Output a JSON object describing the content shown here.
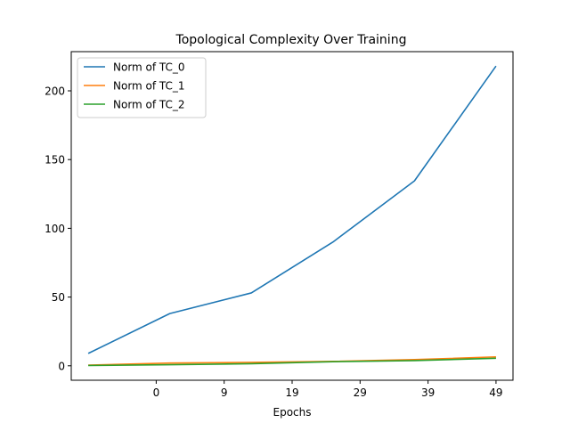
{
  "chart_data": {
    "type": "line",
    "title": "Topological Complexity Over Training",
    "xlabel": "Epochs",
    "ylabel": "",
    "x_ticks": [
      {
        "pos": 1,
        "label": "0"
      },
      {
        "pos": 2,
        "label": "9"
      },
      {
        "pos": 3,
        "label": "19"
      },
      {
        "pos": 4,
        "label": "29"
      },
      {
        "pos": 5,
        "label": "39"
      },
      {
        "pos": 6,
        "label": "49"
      }
    ],
    "y_ticks": [
      0,
      50,
      100,
      150,
      200
    ],
    "xlim": [
      -0.25,
      6.25
    ],
    "ylim": [
      -10.5,
      228.5
    ],
    "grid": false,
    "legend_position": "top-left",
    "series": [
      {
        "name": "Norm of TC_0",
        "color": "#1f77b4",
        "x": [
          0,
          1.2,
          2.4,
          3.6,
          4.8,
          6.0
        ],
        "y": [
          9,
          38,
          53,
          90,
          134.5,
          218
        ]
      },
      {
        "name": "Norm of TC_1",
        "color": "#ff7f0e",
        "x": [
          0,
          1.2,
          2.4,
          3.6,
          4.8,
          6.0
        ],
        "y": [
          0.5,
          2,
          2.5,
          3.2,
          4.5,
          6.5
        ]
      },
      {
        "name": "Norm of TC_2",
        "color": "#2ca02c",
        "x": [
          0,
          1.2,
          2.4,
          3.6,
          4.8,
          6.0
        ],
        "y": [
          0.2,
          0.8,
          1.5,
          3.0,
          3.8,
          5.5
        ]
      }
    ]
  }
}
